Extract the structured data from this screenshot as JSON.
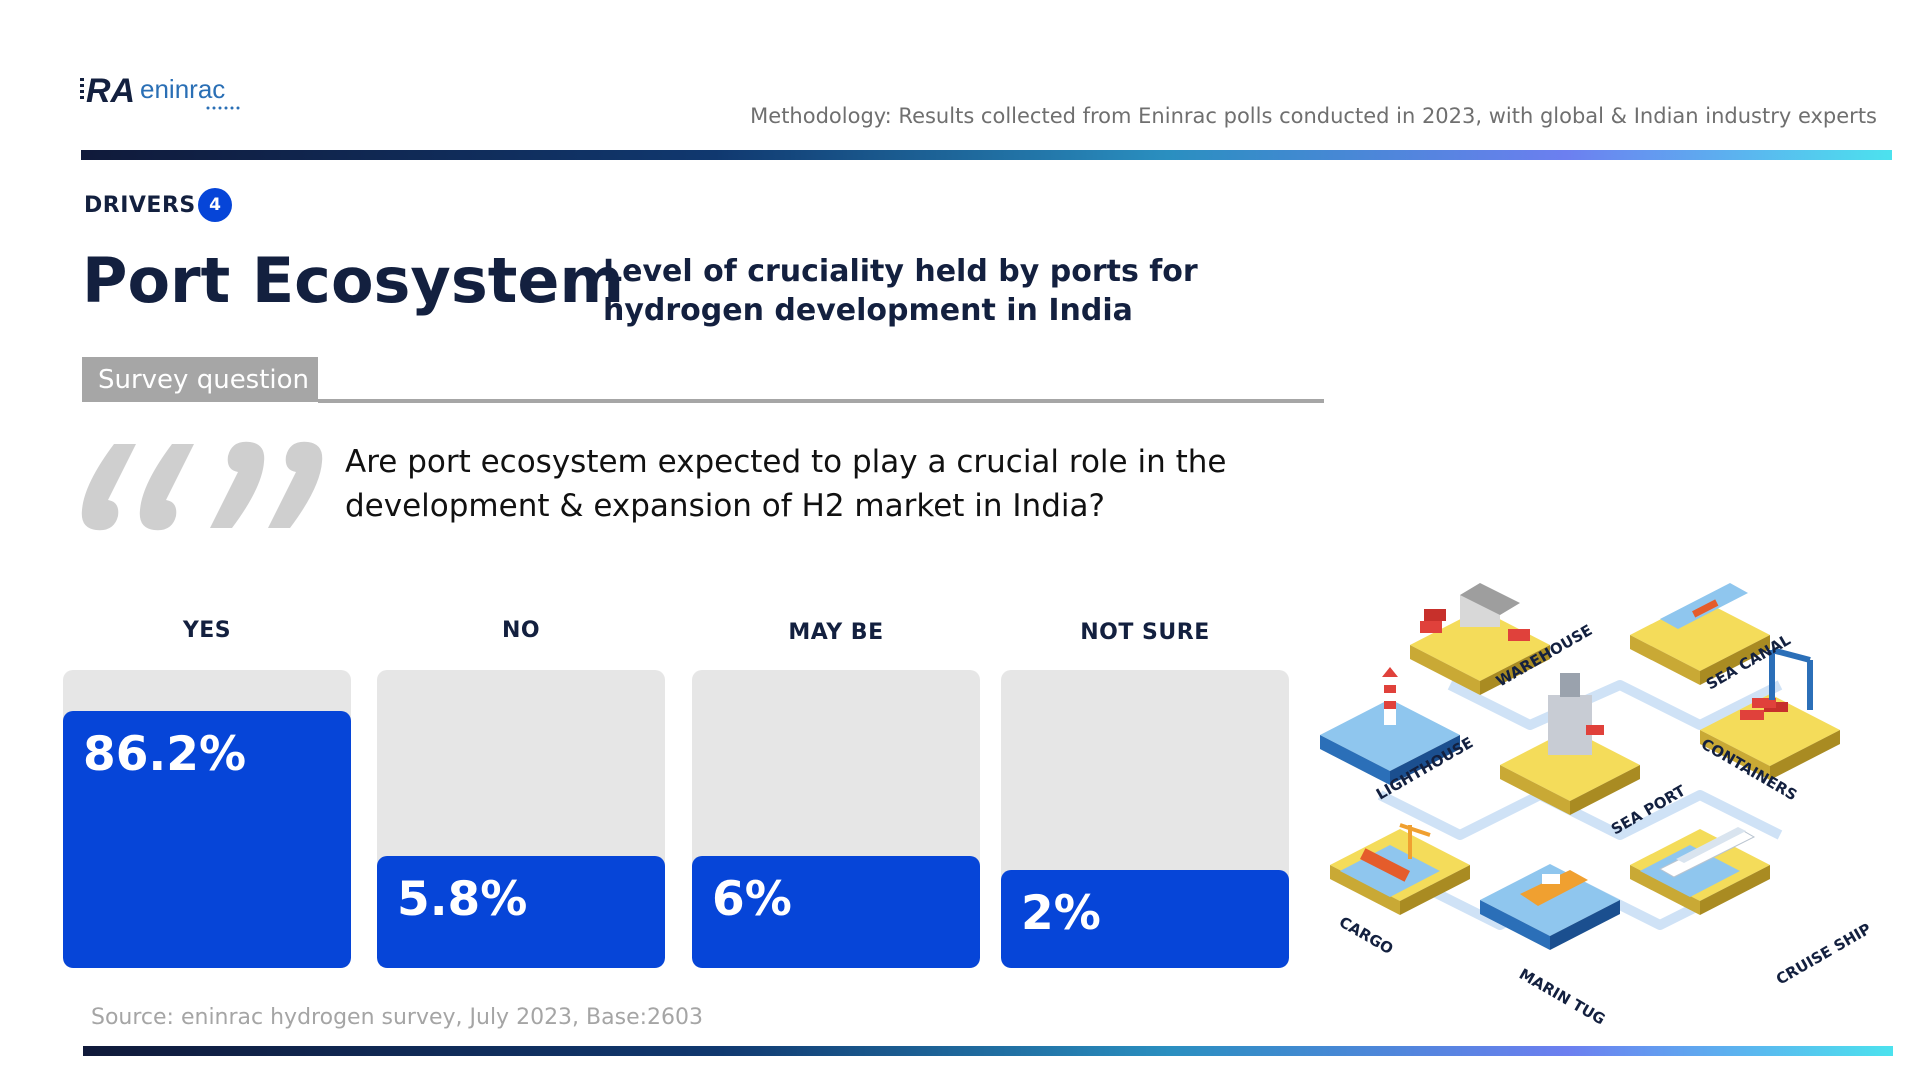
{
  "brand": {
    "logo_text_1": "RA",
    "logo_text_2": "eninrac"
  },
  "header": {
    "methodology": "Methodology: Results collected from Eninrac polls conducted in 2023, with global & Indian industry experts"
  },
  "section": {
    "label": "DRIVERS",
    "number": "4"
  },
  "title": "Port Ecosystem",
  "subtitle": "Level of cruciality held by ports for hydrogen development in India",
  "survey_tab": "Survey question",
  "question": "Are port ecosystem expected to play a crucial role in the development & expansion of H2 market in India?",
  "chart_data": {
    "type": "bar",
    "categories": [
      "YES",
      "NO",
      "MAY BE",
      "NOT SURE"
    ],
    "values": [
      86.2,
      5.8,
      6,
      2
    ],
    "value_labels": [
      "86.2%",
      "5.8%",
      "6%",
      "2%"
    ],
    "ylim": [
      0,
      100
    ],
    "title": "Level of cruciality held by ports for hydrogen development in India"
  },
  "source": "Source: eninrac hydrogen survey, July 2023, Base:2603",
  "illustration_labels": [
    "WAREHOUSE",
    "SEA CANAL",
    "LIGHTHOUSE",
    "CONTAINERS",
    "SEA PORT",
    "CARGO",
    "MARIN TUG",
    "CRUISE SHIP"
  ],
  "colors": {
    "accent": "#0645d8",
    "track": "#e6e6e6",
    "navy": "#13203f",
    "gray": "#a6a6a6"
  }
}
